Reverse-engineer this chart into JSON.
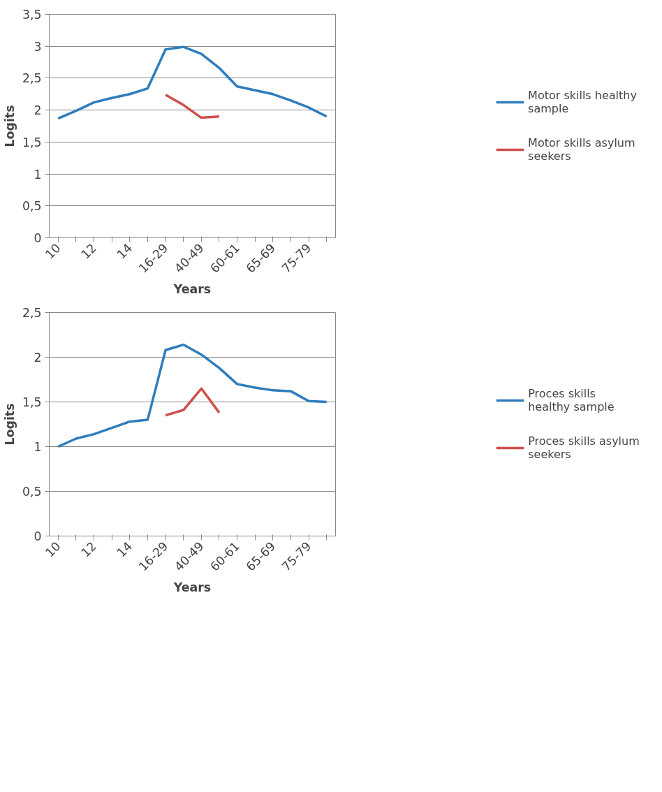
{
  "chart_data": [
    {
      "type": "line",
      "xlabel": "Years",
      "ylabel": "Logits",
      "categories": [
        "10",
        null,
        "12",
        null,
        "14",
        null,
        "16-29",
        null,
        "40-49",
        null,
        "60-61",
        null,
        "65-69",
        null,
        "75-79",
        null
      ],
      "series": [
        {
          "name": "Motor skills healthy sample",
          "color": "#2e7dbd",
          "values": [
            1.87,
            1.99,
            2.12,
            2.19,
            2.25,
            2.34,
            2.95,
            2.99,
            2.88,
            2.66,
            2.37,
            2.31,
            2.25,
            2.15,
            2.04,
            1.9
          ]
        },
        {
          "name": "Motor skills asylum seekers",
          "color": "#cf4f4c",
          "values": [
            null,
            null,
            null,
            null,
            null,
            null,
            2.24,
            2.08,
            1.88,
            1.9,
            null,
            null,
            null,
            null,
            null,
            null
          ]
        }
      ],
      "ylim": [
        0,
        3.5
      ],
      "yticks": [
        0,
        {
          "value": 0.5,
          "label": "0,5"
        },
        1,
        {
          "value": 1.5,
          "label": "1,5"
        },
        2,
        {
          "value": 2.5,
          "label": "2,5"
        },
        3,
        {
          "value": 3.5,
          "label": "3,5"
        }
      ],
      "grid": "y",
      "legend": "right",
      "marker": "none",
      "line_style": "solid"
    },
    {
      "type": "line",
      "xlabel": "Years",
      "ylabel": "Logits",
      "categories": [
        "10",
        null,
        "12",
        null,
        "14",
        null,
        "16-29",
        null,
        "40-49",
        null,
        "60-61",
        null,
        "65-69",
        null,
        "75-79",
        null
      ],
      "series": [
        {
          "name": "Proces skills healthy sample",
          "color": "#2e7dbd",
          "values": [
            1.0,
            1.09,
            1.14,
            1.21,
            1.28,
            1.3,
            2.08,
            2.14,
            2.03,
            1.88,
            1.7,
            1.66,
            1.63,
            1.62,
            1.51,
            1.5
          ]
        },
        {
          "name": "Proces skills asylum seekers",
          "color": "#cf4f4c",
          "values": [
            null,
            null,
            null,
            null,
            null,
            null,
            1.35,
            1.41,
            1.65,
            1.38,
            null,
            null,
            null,
            null,
            null,
            null
          ]
        }
      ],
      "ylim": [
        0,
        2.5
      ],
      "yticks": [
        0,
        {
          "value": 0.5,
          "label": "0,5"
        },
        1,
        {
          "value": 1.5,
          "label": "1,5"
        },
        2,
        {
          "value": 2.5,
          "label": "2,5"
        }
      ],
      "grid": "y",
      "legend": "right",
      "marker": "none",
      "line_style": "solid"
    }
  ]
}
